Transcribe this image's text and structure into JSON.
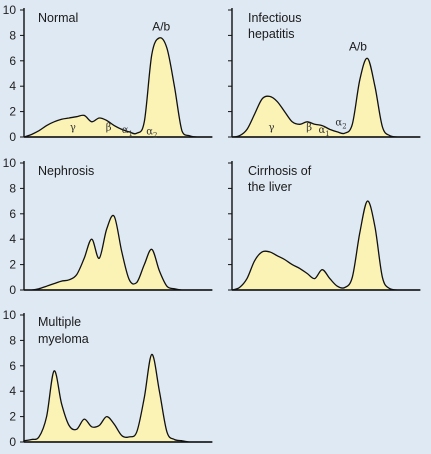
{
  "chart_data": [
    {
      "type": "area",
      "title": "Normal",
      "ylim": [
        0,
        10
      ],
      "yticks": [
        0,
        2,
        4,
        6,
        8,
        10
      ],
      "show_yticks": true,
      "x": [
        0,
        4,
        8,
        12,
        16,
        20,
        24,
        28,
        32,
        36,
        40,
        44,
        48,
        52,
        56,
        60,
        64,
        68,
        72,
        76,
        80,
        84,
        88,
        92,
        96,
        100
      ],
      "y": [
        0,
        0.2,
        0.5,
        0.9,
        1.2,
        1.4,
        1.5,
        1.6,
        1.7,
        1.2,
        1.5,
        1.3,
        0.9,
        0.6,
        0.4,
        0.3,
        1.2,
        6.5,
        7.8,
        7.0,
        4.0,
        0.5,
        0.1,
        0,
        0,
        0
      ],
      "annotations": [
        {
          "text": "A/b",
          "x": 73,
          "y": 8.4,
          "style": "peak"
        },
        {
          "text": "γ",
          "x": 26,
          "y": 0.5,
          "style": "fraction"
        },
        {
          "text": "β",
          "x": 45,
          "y": 0.5,
          "style": "fraction"
        },
        {
          "text": "α1",
          "x": 55,
          "y": 0.3,
          "style": "fraction"
        },
        {
          "text": "α2",
          "x": 68,
          "y": 0.2,
          "style": "fraction"
        }
      ]
    },
    {
      "type": "area",
      "title": "Infectious hepatitis",
      "ylim": [
        0,
        10
      ],
      "yticks": [
        0,
        2,
        4,
        6,
        8,
        10
      ],
      "show_yticks": false,
      "x": [
        0,
        4,
        8,
        12,
        16,
        20,
        24,
        28,
        32,
        36,
        40,
        44,
        48,
        52,
        56,
        60,
        64,
        68,
        72,
        76,
        80,
        84,
        88,
        92,
        96,
        100
      ],
      "y": [
        0,
        0.1,
        0.6,
        1.8,
        3.0,
        3.2,
        2.8,
        2.0,
        1.2,
        1.0,
        1.2,
        1.0,
        0.9,
        0.6,
        0.4,
        0.3,
        1.0,
        4.5,
        6.2,
        4.0,
        0.8,
        0.1,
        0,
        0,
        0,
        0
      ],
      "annotations": [
        {
          "text": "A/b",
          "x": 67,
          "y": 6.8,
          "style": "peak"
        },
        {
          "text": "γ",
          "x": 21,
          "y": 0.5,
          "style": "fraction"
        },
        {
          "text": "β",
          "x": 41,
          "y": 0.5,
          "style": "fraction"
        },
        {
          "text": "α1",
          "x": 49,
          "y": 0.3,
          "style": "fraction"
        },
        {
          "text": "α2",
          "x": 58,
          "y": 0.9,
          "style": "fraction"
        }
      ]
    },
    {
      "type": "area",
      "title": "Nephrosis",
      "ylim": [
        0,
        10
      ],
      "yticks": [
        0,
        2,
        4,
        6,
        8,
        10
      ],
      "show_yticks": true,
      "x": [
        0,
        4,
        8,
        12,
        16,
        20,
        24,
        28,
        32,
        36,
        40,
        44,
        48,
        52,
        56,
        60,
        64,
        68,
        72,
        76,
        80,
        84,
        88,
        92,
        96,
        100
      ],
      "y": [
        0,
        0,
        0.1,
        0.3,
        0.5,
        0.7,
        0.8,
        1.2,
        2.5,
        4.0,
        2.5,
        4.8,
        5.8,
        3.0,
        0.8,
        0.6,
        2.0,
        3.2,
        1.5,
        0.3,
        0.1,
        0,
        0,
        0,
        0,
        0
      ]
    },
    {
      "type": "area",
      "title": "Cirrhosis of the liver",
      "ylim": [
        0,
        10
      ],
      "yticks": [
        0,
        2,
        4,
        6,
        8,
        10
      ],
      "show_yticks": false,
      "x": [
        0,
        4,
        8,
        12,
        16,
        20,
        24,
        28,
        32,
        36,
        40,
        44,
        48,
        52,
        56,
        60,
        64,
        68,
        72,
        76,
        80,
        84,
        88,
        92,
        96,
        100
      ],
      "y": [
        0,
        0.2,
        0.9,
        2.3,
        3.0,
        3.0,
        2.7,
        2.4,
        2.0,
        1.7,
        1.3,
        0.9,
        1.6,
        0.9,
        0.3,
        0.2,
        1.0,
        4.5,
        7.0,
        5.0,
        1.0,
        0.1,
        0,
        0,
        0,
        0
      ]
    },
    {
      "type": "area",
      "title": "Multiple myeloma",
      "ylim": [
        0,
        10
      ],
      "yticks": [
        0,
        2,
        4,
        6,
        8,
        10
      ],
      "show_yticks": true,
      "x": [
        0,
        4,
        8,
        12,
        16,
        20,
        24,
        28,
        32,
        36,
        40,
        44,
        48,
        52,
        56,
        60,
        64,
        68,
        72,
        76,
        80,
        84,
        88,
        92,
        96,
        100
      ],
      "y": [
        0.1,
        0.2,
        0.4,
        2.0,
        5.6,
        3.0,
        1.3,
        1.0,
        1.8,
        1.2,
        1.3,
        2.0,
        1.4,
        0.5,
        0.4,
        0.8,
        3.5,
        6.9,
        4.0,
        0.8,
        0.2,
        0.1,
        0,
        0,
        0,
        0
      ]
    }
  ]
}
